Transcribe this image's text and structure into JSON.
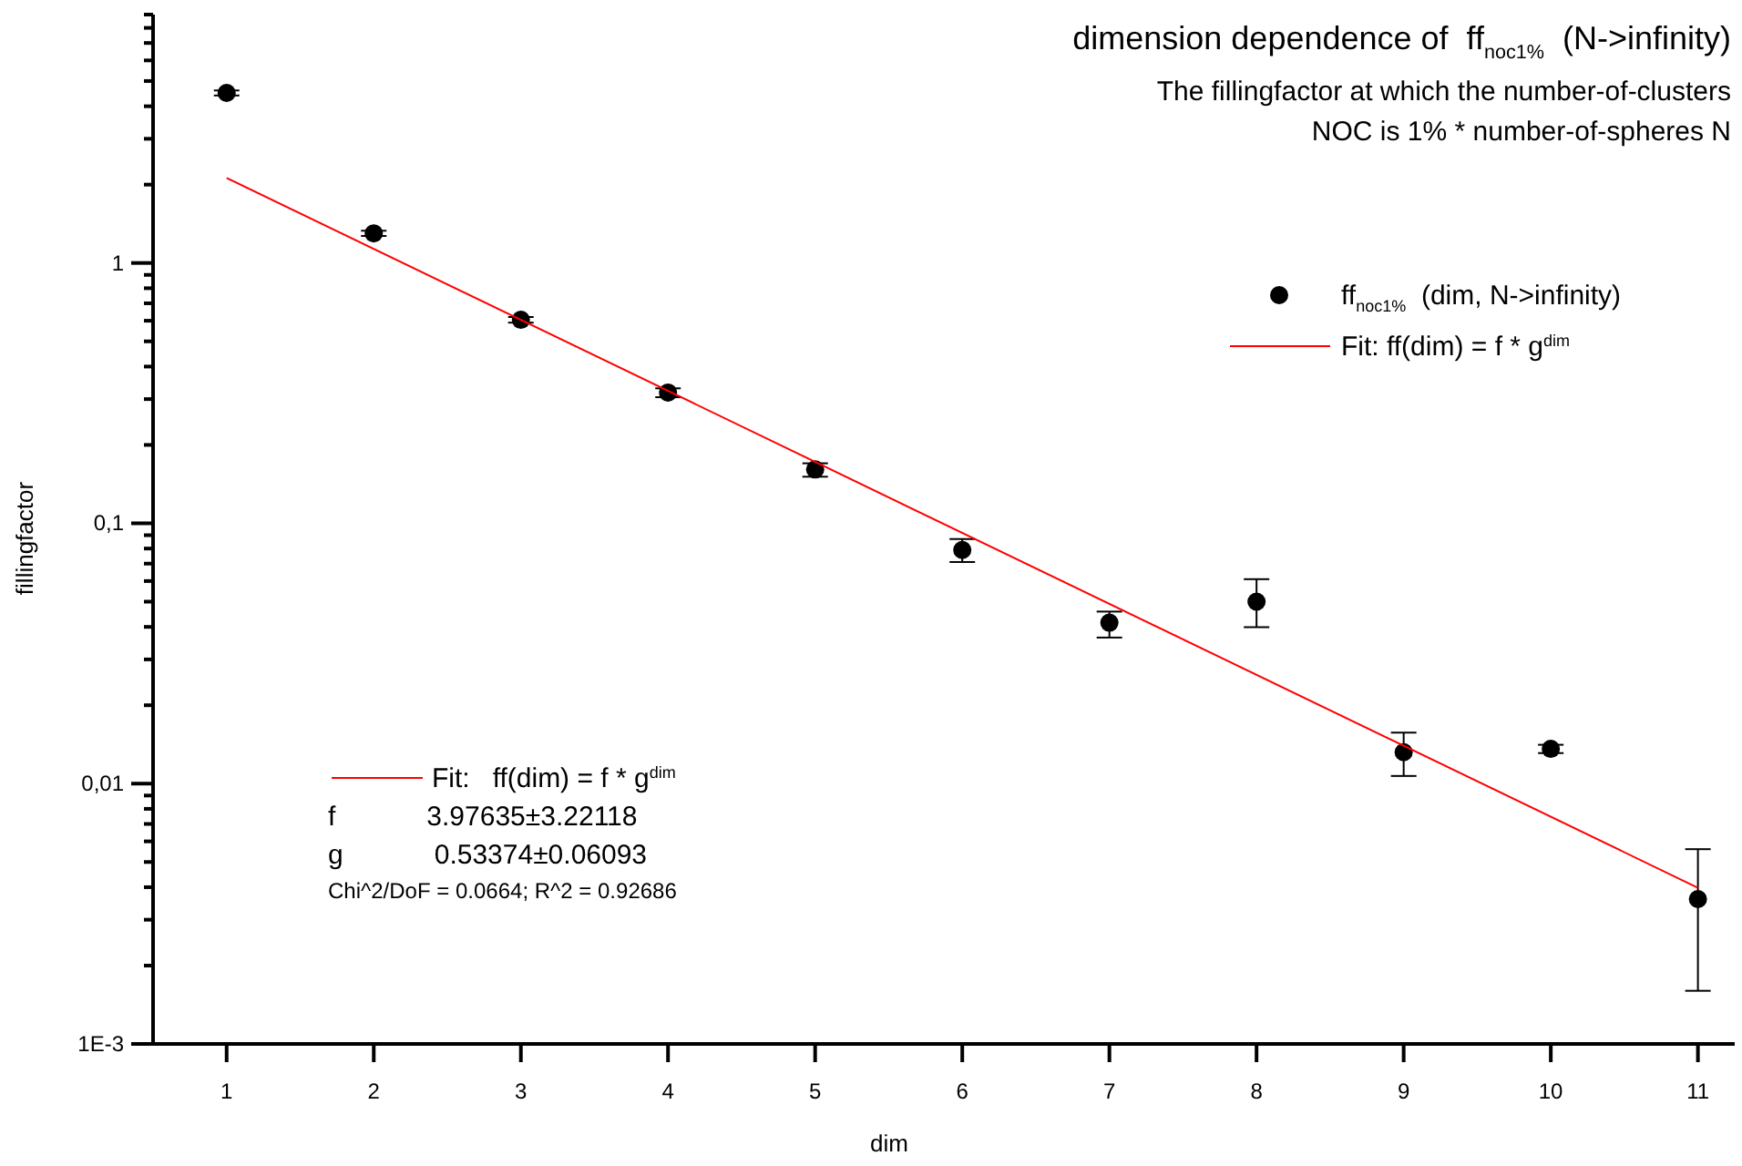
{
  "chart_data": {
    "type": "scatter",
    "title": "dimension dependence of  ff$_{noc1%}$  (N->infinity)",
    "subtitle": "The fillingfactor at which the number-of-clusters\nNOC is 1% * number-of-spheres N",
    "xlabel": "dim",
    "ylabel": "fillingfactor",
    "log": "y",
    "grid": false,
    "legend": "top right",
    "xlim": [
      0.5,
      11.25
    ],
    "xticks": [
      1,
      2,
      3,
      4,
      5,
      6,
      7,
      8,
      9,
      10,
      11
    ],
    "ylim": [
      0.001,
      9
    ],
    "yticks": [
      {
        "value": 0.001,
        "label": "1E-3"
      },
      {
        "value": 0.002,
        "label": null
      },
      {
        "value": 0.003,
        "label": null
      },
      {
        "value": 0.004,
        "label": null
      },
      {
        "value": 0.005,
        "label": null
      },
      {
        "value": 0.006,
        "label": null
      },
      {
        "value": 0.007,
        "label": null
      },
      {
        "value": 0.008,
        "label": null
      },
      {
        "value": 0.009,
        "label": null
      },
      {
        "value": 0.01,
        "label": "0,01"
      },
      {
        "value": 0.02,
        "label": null
      },
      {
        "value": 0.03,
        "label": null
      },
      {
        "value": 0.04,
        "label": null
      },
      {
        "value": 0.05,
        "label": null
      },
      {
        "value": 0.06,
        "label": null
      },
      {
        "value": 0.07,
        "label": null
      },
      {
        "value": 0.08,
        "label": null
      },
      {
        "value": 0.09,
        "label": null
      },
      {
        "value": 0.1,
        "label": "0,1"
      },
      {
        "value": 0.2,
        "label": null
      },
      {
        "value": 0.3,
        "label": null
      },
      {
        "value": 0.4,
        "label": null
      },
      {
        "value": 0.5,
        "label": null
      },
      {
        "value": 0.6,
        "label": null
      },
      {
        "value": 0.7,
        "label": null
      },
      {
        "value": 0.8,
        "label": null
      },
      {
        "value": 0.9,
        "label": null
      },
      1,
      {
        "value": 2,
        "label": null
      },
      {
        "value": 3,
        "label": null
      },
      {
        "value": 4,
        "label": null
      },
      {
        "value": 5,
        "label": null
      },
      {
        "value": 6,
        "label": null
      },
      {
        "value": 7,
        "label": null
      },
      {
        "value": 8,
        "label": null
      },
      {
        "value": 9,
        "label": null
      }
    ],
    "series": [
      {
        "name": "ff$_{noc1%}$  (dim, N->infinity)",
        "marker": "circle",
        "color": "#000000",
        "x": [
          1,
          2,
          3,
          4,
          5,
          6,
          7,
          8,
          9,
          10,
          11
        ],
        "values": [
          4.5,
          1.3,
          0.605,
          0.318,
          0.161,
          0.079,
          0.0415,
          0.05,
          0.0132,
          0.0136,
          0.0036
        ],
        "errors": [
          [
            4.4,
            4.6
          ],
          [
            1.27,
            1.33
          ],
          [
            0.59,
            0.62
          ],
          [
            0.305,
            0.33
          ],
          [
            0.151,
            0.17
          ],
          [
            0.071,
            0.087
          ],
          [
            0.0364,
            0.0458
          ],
          [
            0.0399,
            0.061
          ],
          [
            0.0107,
            0.0157
          ],
          [
            0.0131,
            0.0141
          ],
          [
            0.0016,
            0.0056
          ]
        ]
      },
      {
        "name": "Fit: ff(dim) = f * g$^{dim}$",
        "type": "line",
        "marker": "none",
        "color": "#ff0000",
        "x": [
          1,
          11
        ],
        "values": [
          2.122,
          0.00398
        ]
      }
    ],
    "annotations": [
      "Fit:   ff(dim) = f * g$^{dim}$",
      "f            3.97635±3.22118",
      "g            0.53374±0.06093",
      "Chi^2/DoF = 0.0664; R^2 = 0.92686"
    ]
  }
}
